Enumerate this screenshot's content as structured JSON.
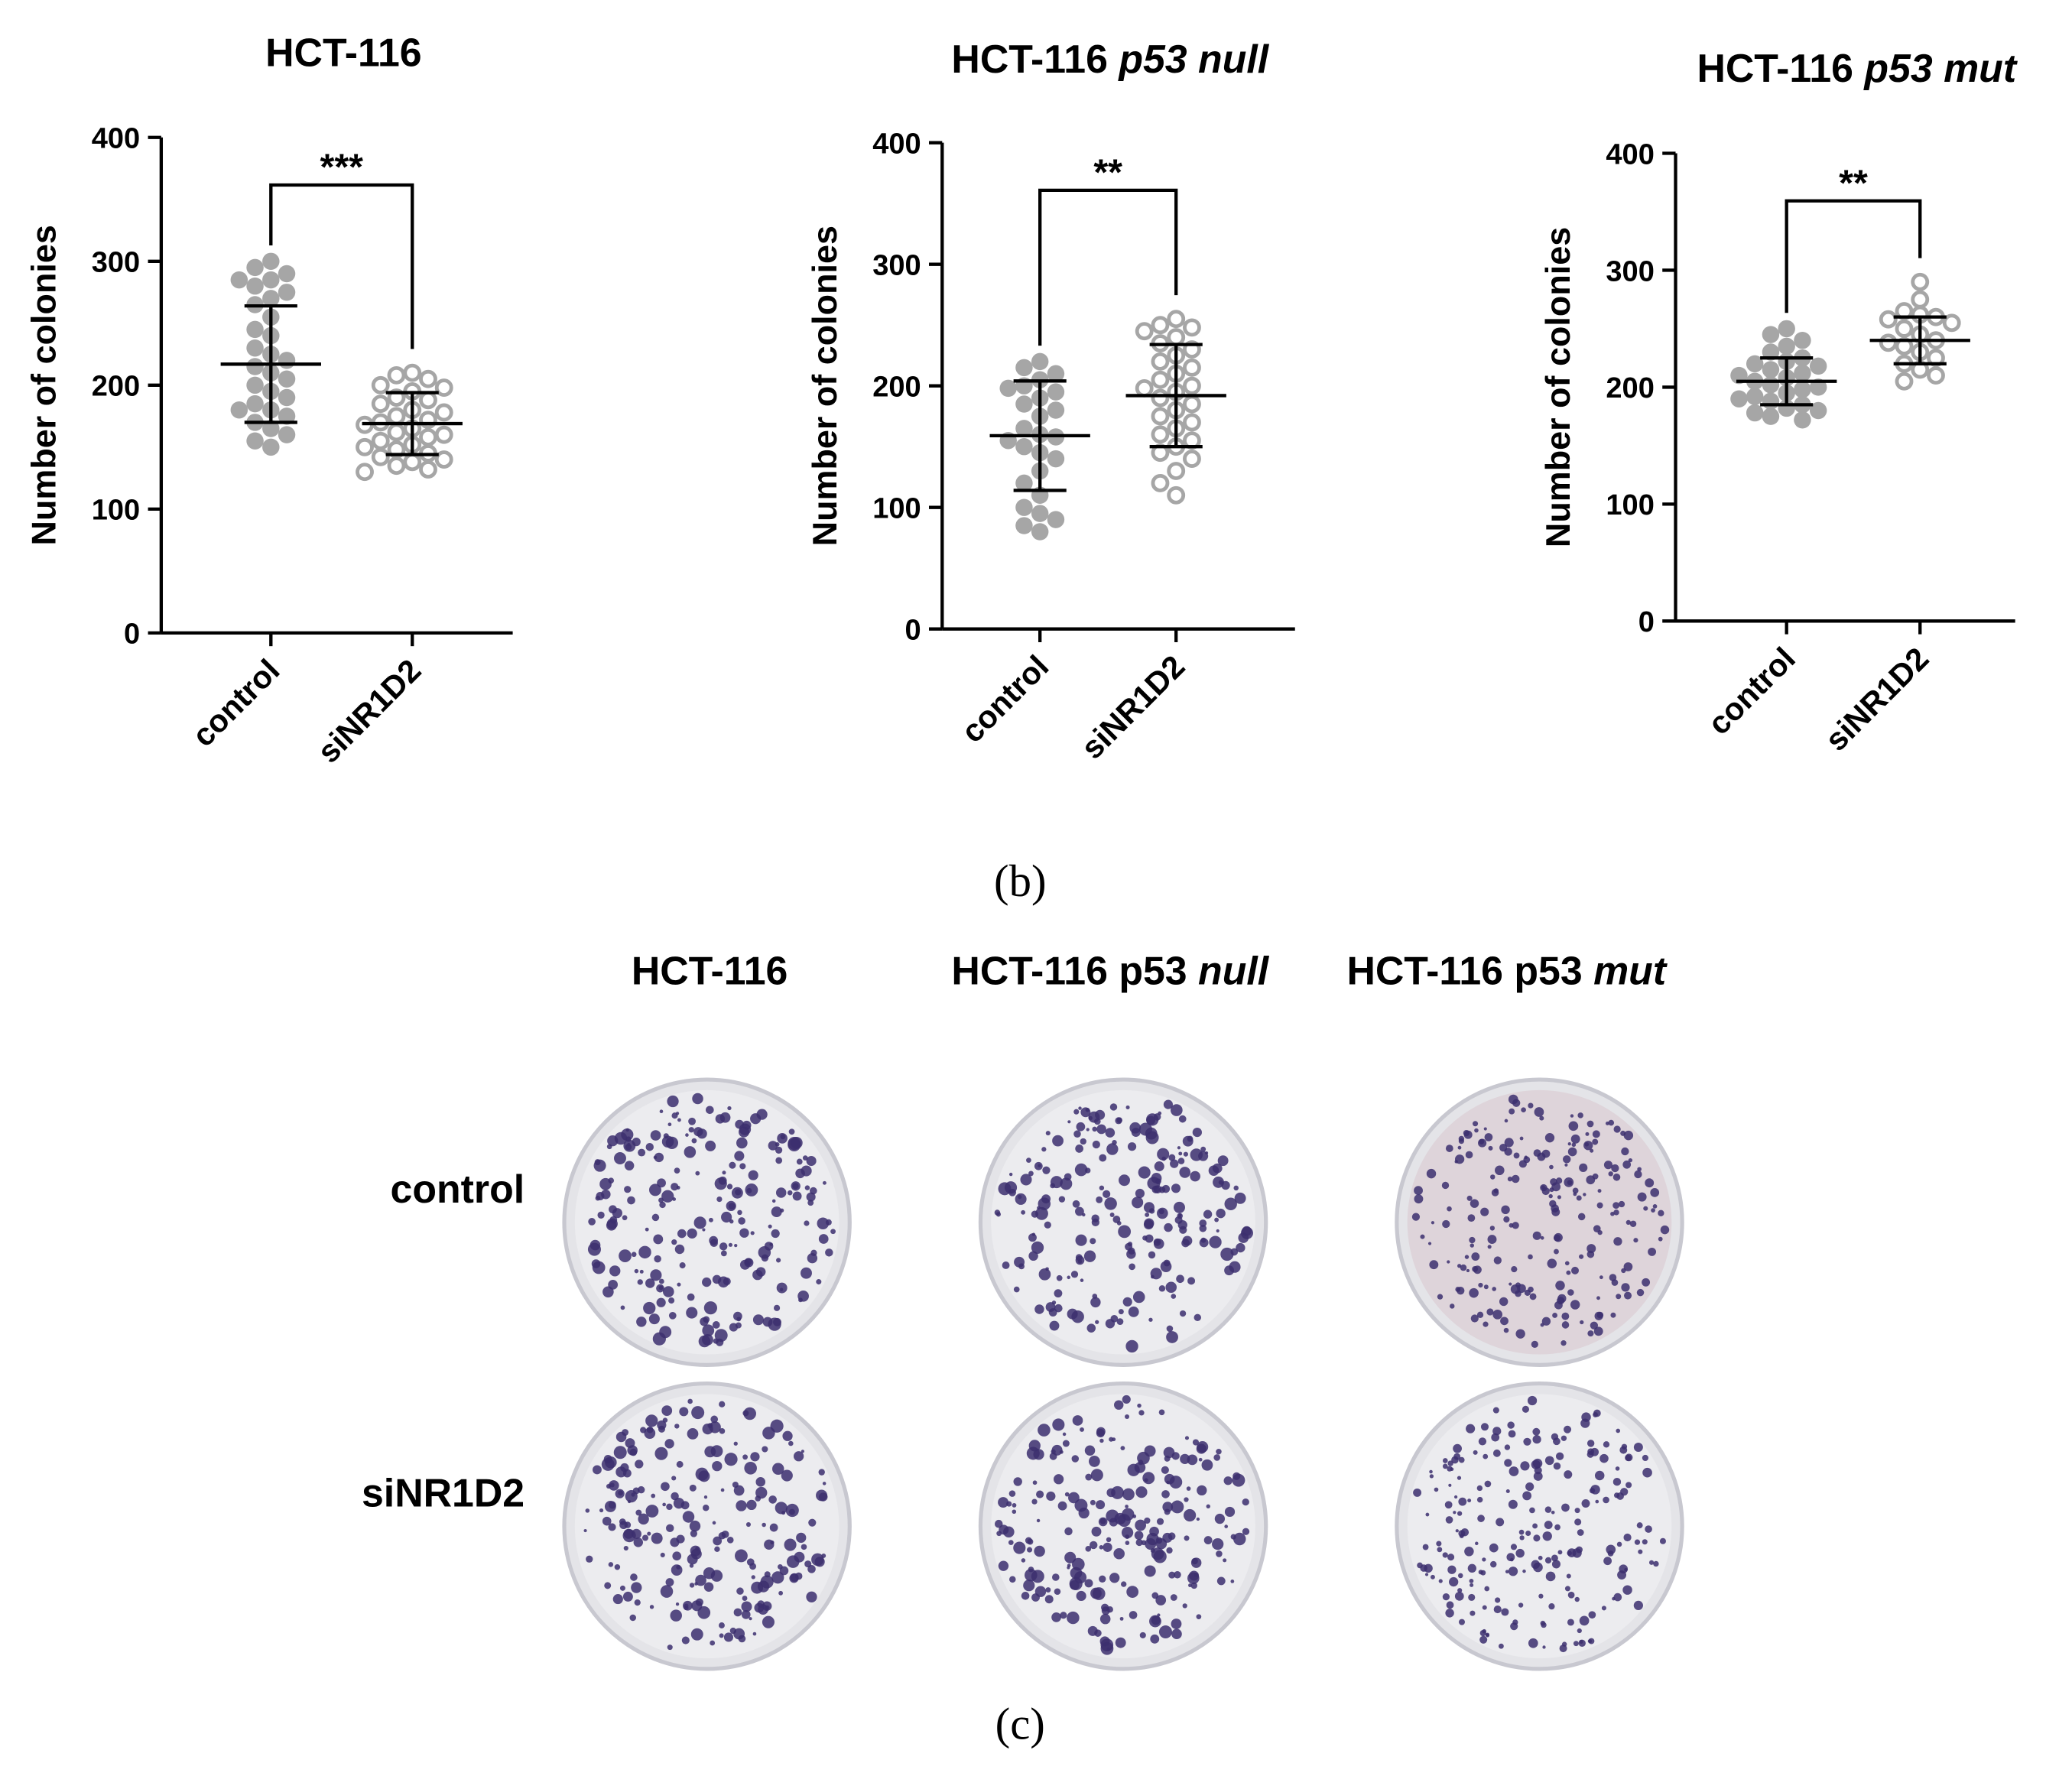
{
  "chart_data": [
    {
      "type": "dotplot",
      "title": "HCT-116",
      "title_italic": null,
      "ylabel": "Number of colonies",
      "categories": [
        "control",
        "siNR1D2"
      ],
      "ylim": [
        0,
        400
      ],
      "yticks": [
        0,
        100,
        200,
        300,
        400
      ],
      "significance": "***",
      "groups": [
        {
          "filled": true,
          "color": "#a6a6a6",
          "mean": 217,
          "sd": 47,
          "values": [
            300,
            295,
            290,
            285,
            285,
            280,
            275,
            270,
            265,
            255,
            245,
            240,
            230,
            225,
            220,
            215,
            210,
            205,
            200,
            195,
            190,
            185,
            180,
            180,
            175,
            170,
            165,
            160,
            155,
            150
          ]
        },
        {
          "filled": false,
          "color": "#a6a6a6",
          "mean": 169,
          "sd": 25,
          "values": [
            210,
            208,
            205,
            200,
            198,
            195,
            190,
            188,
            185,
            180,
            178,
            175,
            172,
            170,
            168,
            165,
            162,
            160,
            158,
            155,
            152,
            150,
            148,
            145,
            142,
            140,
            138,
            135,
            132,
            130
          ]
        }
      ]
    },
    {
      "type": "dotplot",
      "title": "HCT-116",
      "title_italic": "p53 null",
      "ylabel": "Number of colonies",
      "categories": [
        "control",
        "siNR1D2"
      ],
      "ylim": [
        0,
        400
      ],
      "yticks": [
        0,
        100,
        200,
        300,
        400
      ],
      "significance": "**",
      "groups": [
        {
          "filled": true,
          "color": "#a6a6a6",
          "mean": 159,
          "sd": 45,
          "values": [
            220,
            215,
            210,
            205,
            200,
            198,
            195,
            190,
            185,
            180,
            175,
            165,
            160,
            158,
            155,
            150,
            145,
            140,
            130,
            120,
            110,
            100,
            95,
            90,
            85,
            80
          ]
        },
        {
          "filled": false,
          "color": "#a6a6a6",
          "mean": 192,
          "sd": 42,
          "values": [
            255,
            250,
            248,
            245,
            240,
            235,
            230,
            225,
            220,
            215,
            210,
            205,
            200,
            198,
            195,
            190,
            185,
            180,
            175,
            170,
            165,
            160,
            155,
            150,
            145,
            140,
            130,
            120,
            110
          ]
        }
      ]
    },
    {
      "type": "dotplot",
      "title": "HCT-116",
      "title_italic": "p53 mut",
      "ylabel": "Number of colonies",
      "categories": [
        "control",
        "siNR1D2"
      ],
      "ylim": [
        0,
        400
      ],
      "yticks": [
        0,
        100,
        200,
        300,
        400
      ],
      "significance": "**",
      "groups": [
        {
          "filled": true,
          "color": "#a6a6a6",
          "mean": 205,
          "sd": 20,
          "values": [
            250,
            245,
            240,
            235,
            230,
            225,
            222,
            220,
            218,
            215,
            212,
            210,
            208,
            205,
            202,
            200,
            198,
            195,
            192,
            190,
            188,
            185,
            182,
            180,
            178,
            175,
            172
          ]
        },
        {
          "filled": false,
          "color": "#a6a6a6",
          "mean": 240,
          "sd": 20,
          "values": [
            290,
            275,
            265,
            262,
            260,
            258,
            255,
            250,
            245,
            240,
            238,
            235,
            230,
            225,
            220,
            215,
            210,
            205
          ]
        }
      ]
    }
  ],
  "panel_labels": [
    "(b)",
    "(c)"
  ],
  "photo_panel": {
    "columns": [
      {
        "text": "HCT-116",
        "italic": null
      },
      {
        "text": "HCT-116 p53",
        "italic": "null"
      },
      {
        "text": "HCT-116 p53",
        "italic": "mut"
      }
    ],
    "rows": [
      "control",
      "siNR1D2"
    ]
  }
}
